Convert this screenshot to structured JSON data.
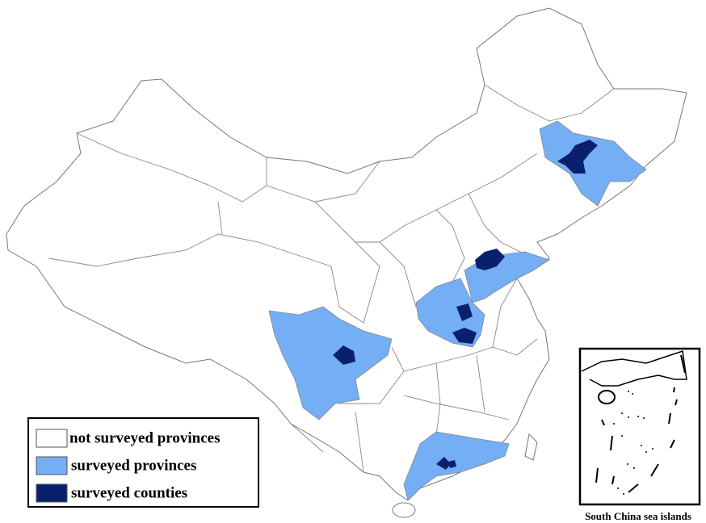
{
  "legend": {
    "items": [
      {
        "label": "not surveyed provinces",
        "color": "#ffffff"
      },
      {
        "label": "surveyed provinces",
        "color": "#74aef5"
      },
      {
        "label": "surveyed counties",
        "color": "#0b206d"
      }
    ]
  },
  "inset": {
    "caption": "South China sea islands"
  }
}
